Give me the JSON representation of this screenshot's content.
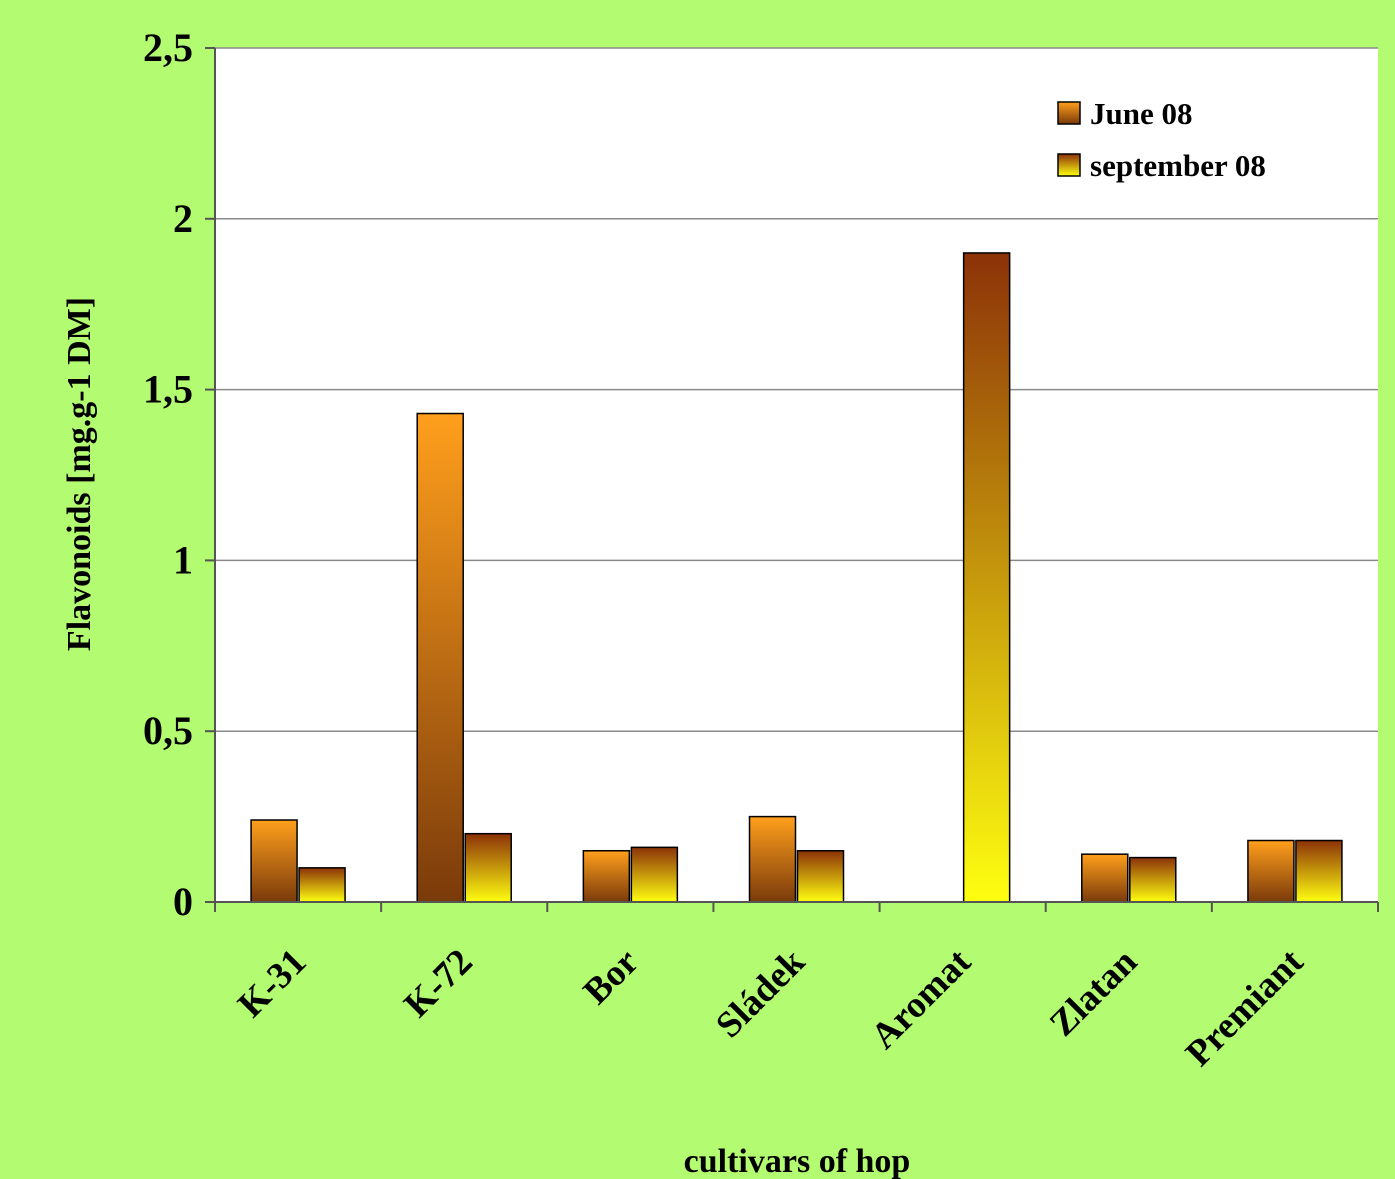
{
  "chart_data": {
    "type": "bar",
    "categories": [
      "K-31",
      "K-72",
      "Bor",
      "Sládek",
      "Aromat",
      "Zlatan",
      "Premiant"
    ],
    "series": [
      {
        "name": "June 08",
        "values": [
          0.24,
          1.43,
          0.15,
          0.25,
          null,
          0.14,
          0.18
        ],
        "gradient": [
          "#ff9f1c",
          "#7a3a0a"
        ]
      },
      {
        "name": "september 08",
        "values": [
          0.1,
          0.2,
          0.16,
          0.15,
          1.9,
          0.13,
          0.18
        ],
        "gradient": [
          "#8c3208",
          "#ffff10"
        ]
      }
    ],
    "xlabel": "cultivars of hop",
    "ylabel": "Flavonoids [mg.g-1 DM]",
    "ylim": [
      0,
      2.5
    ],
    "yticks": [
      0,
      0.5,
      1,
      1.5,
      2,
      2.5
    ],
    "ytick_labels": [
      "0",
      "0,5",
      "1",
      "1,5",
      "2",
      "2,5"
    ],
    "grid": true,
    "legend": "top-right",
    "colors": {
      "page_background": "#b3fb70",
      "plot_background": "#ffffff",
      "gridline": "#8a8a8a"
    }
  }
}
